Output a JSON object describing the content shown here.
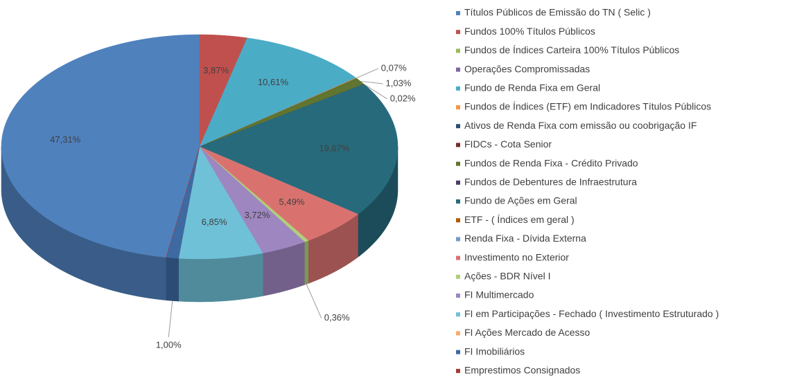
{
  "chart_data": {
    "type": "pie3d",
    "categories": [
      "Títulos Públicos de Emissão do TN ( Selic )",
      "Fundos  100% Títulos Públicos",
      "Fundos de Índices Carteira 100% Títulos Públicos",
      "Operações Compromissadas",
      "Fundo de Renda Fixa em Geral",
      " Fundos de Índices (ETF) em Indicadores Títulos Públicos",
      "Ativos de Renda Fixa com emissão ou coobrigação IF",
      "FIDCs - Cota Senior",
      "Fundos de Renda Fixa - Crédito Privado",
      "Fundos de Debentures de Infraestrutura",
      "Fundo de Ações em Geral",
      "ETF - ( Índices em geral )",
      "Renda Fixa - Dívida Externa",
      "Investimento no Exterior",
      "Ações - BDR Nível I",
      "FI Multimercado",
      "FI em Participações - Fechado ( Investimento Estruturado )",
      "FI Ações Mercado de Acesso",
      "FI Imobiliários",
      "Emprestimos Consignados"
    ],
    "values": [
      47.31,
      3.87,
      0,
      0,
      10.61,
      0.07,
      0,
      0,
      1.03,
      0.02,
      19.67,
      0,
      0,
      5.49,
      0.36,
      3.72,
      6.85,
      0,
      1.0,
      0
    ],
    "value_labels": [
      "47,31%",
      "3,87%",
      null,
      null,
      "10,61%",
      "0,07%",
      null,
      null,
      "1,03%",
      "0,02%",
      "19,67%",
      null,
      null,
      "5,49%",
      "0,36%",
      "3,72%",
      "6,85%",
      null,
      "1,00%",
      null
    ],
    "colors": [
      "#4f81bd",
      "#c0504d",
      "#9bbb59",
      "#8064a2",
      "#4bacc6",
      "#f79646",
      "#2c4d75",
      "#772c2a",
      "#5f7530",
      "#4d3b62",
      "#276a7c",
      "#b65708",
      "#729aca",
      "#d9726f",
      "#afd07a",
      "#9e86c0",
      "#6fc1d8",
      "#f9ab6b",
      "#3d6aa3",
      "#a33b38"
    ],
    "legend": "right"
  }
}
